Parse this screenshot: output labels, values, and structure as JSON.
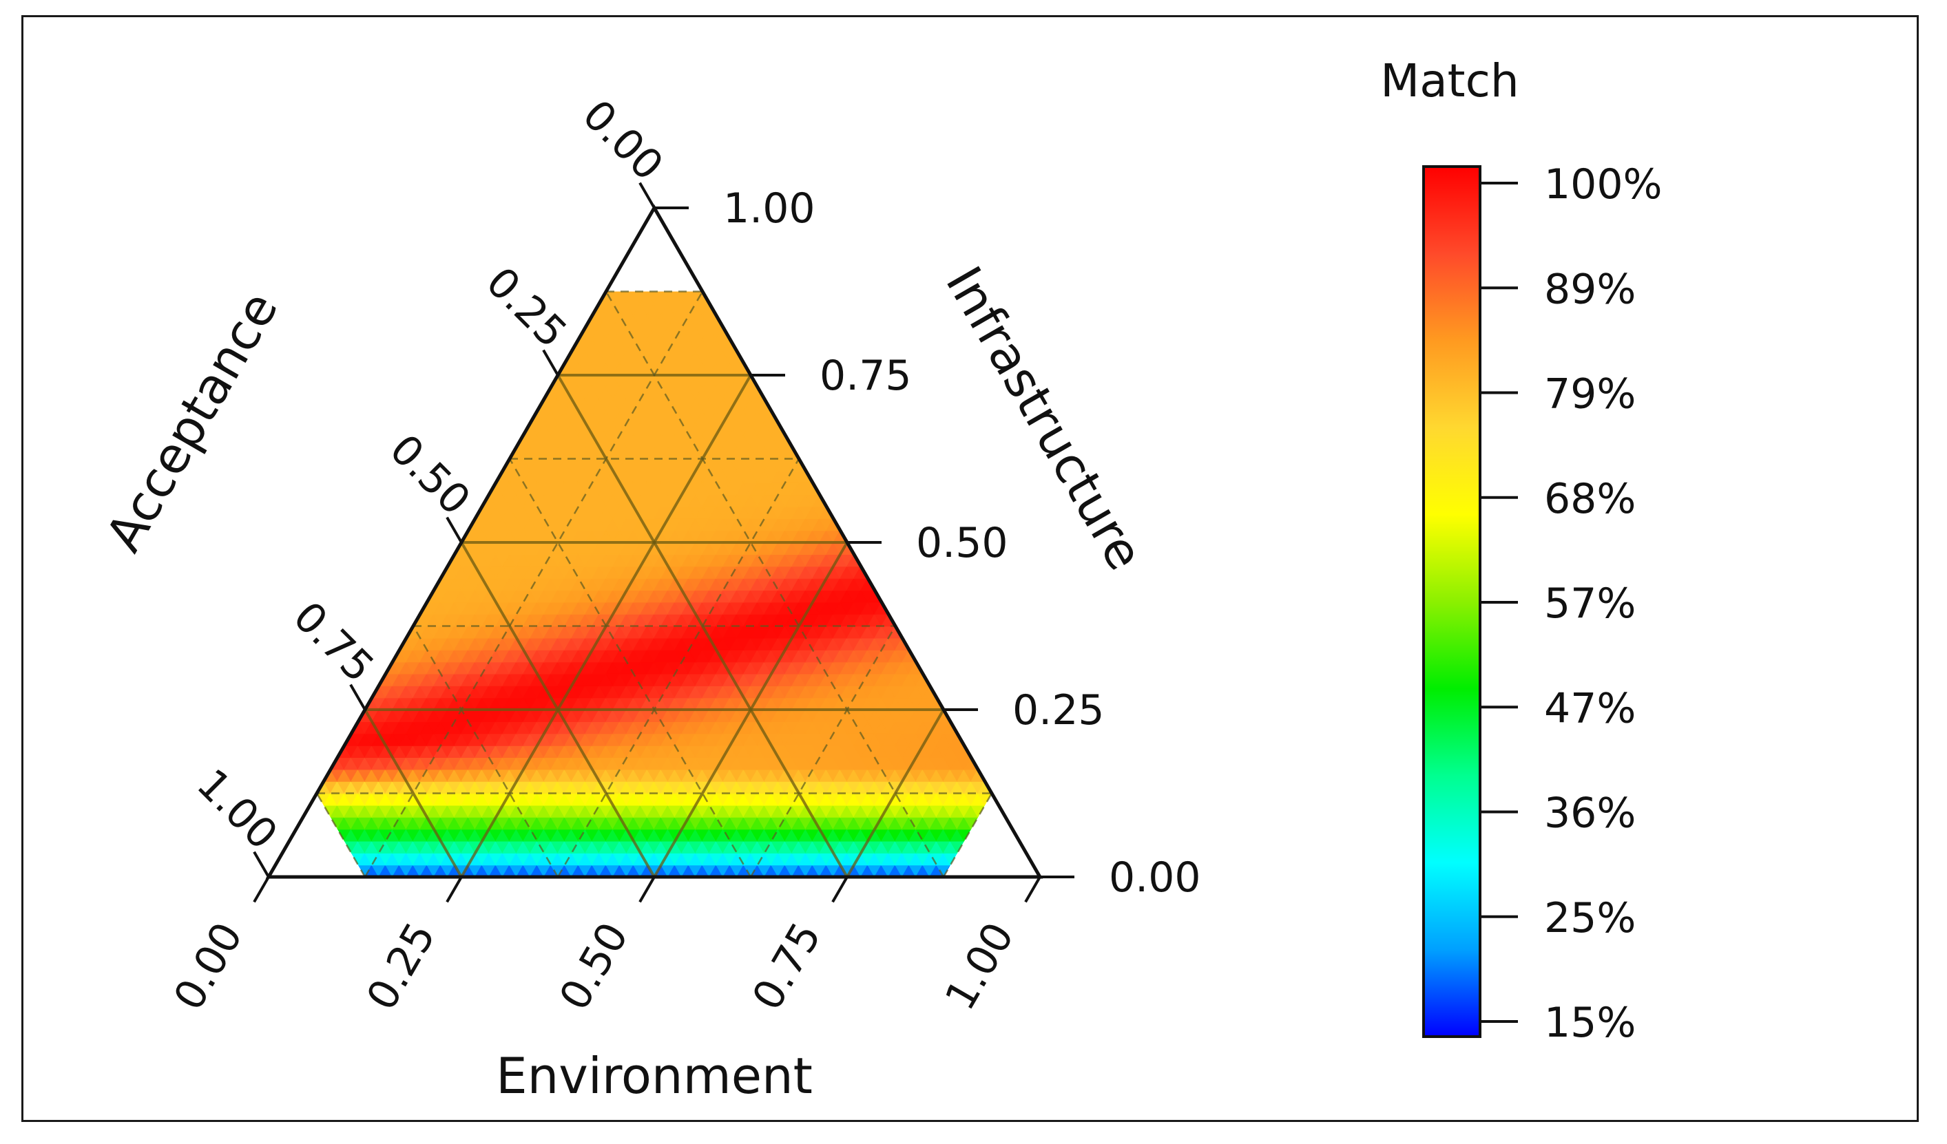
{
  "chart_data": {
    "type": "heatmap",
    "subtype": "ternary-contour",
    "axes": {
      "infrastructure": {
        "label": "Infrastructure",
        "ticks": [
          "0.00",
          "0.25",
          "0.50",
          "0.75",
          "1.00"
        ],
        "range": [
          0,
          1
        ]
      },
      "acceptance": {
        "label": "Acceptance",
        "ticks": [
          "0.00",
          "0.25",
          "0.50",
          "0.75",
          "1.00"
        ],
        "range": [
          0,
          1
        ]
      },
      "environment": {
        "label": "Environment",
        "ticks": [
          "0.00",
          "0.25",
          "0.50",
          "0.75",
          "1.00"
        ],
        "range": [
          0,
          1
        ]
      }
    },
    "grid": true,
    "grid_step": 0.25,
    "minor_grid_step": 0.125,
    "data_region_limits": {
      "infrastructure_max": 0.875,
      "acceptance_max": 0.875,
      "environment_max": 0.875
    },
    "colorbar": {
      "title": "Match",
      "tick_labels": [
        "100%",
        "89%",
        "79%",
        "68%",
        "57%",
        "47%",
        "36%",
        "25%",
        "15%"
      ],
      "range": [
        15,
        100
      ],
      "colormap": [
        "#0000ff",
        "#00a0ff",
        "#00ffff",
        "#00ff90",
        "#00ee00",
        "#8cf000",
        "#ffff00",
        "#ffd830",
        "#ff9a20",
        "#ff4a2a",
        "#ff0000"
      ]
    },
    "field_description_values": [
      {
        "infrastructure": 0.0,
        "acceptance": 0.5,
        "environment": 0.5,
        "match": 15
      },
      {
        "infrastructure": 0.05,
        "acceptance": 0.5,
        "environment": 0.45,
        "match": 60
      },
      {
        "infrastructure": 0.1,
        "acceptance": 0.5,
        "environment": 0.4,
        "match": 80
      },
      {
        "infrastructure": 0.25,
        "acceptance": 0.5,
        "environment": 0.25,
        "match": 97
      },
      {
        "infrastructure": 0.375,
        "acceptance": 0.375,
        "environment": 0.25,
        "match": 98
      },
      {
        "infrastructure": 0.6,
        "acceptance": 0.2,
        "environment": 0.2,
        "match": 82
      },
      {
        "infrastructure": 0.2,
        "acceptance": 0.75,
        "environment": 0.05,
        "match": 80
      }
    ]
  }
}
